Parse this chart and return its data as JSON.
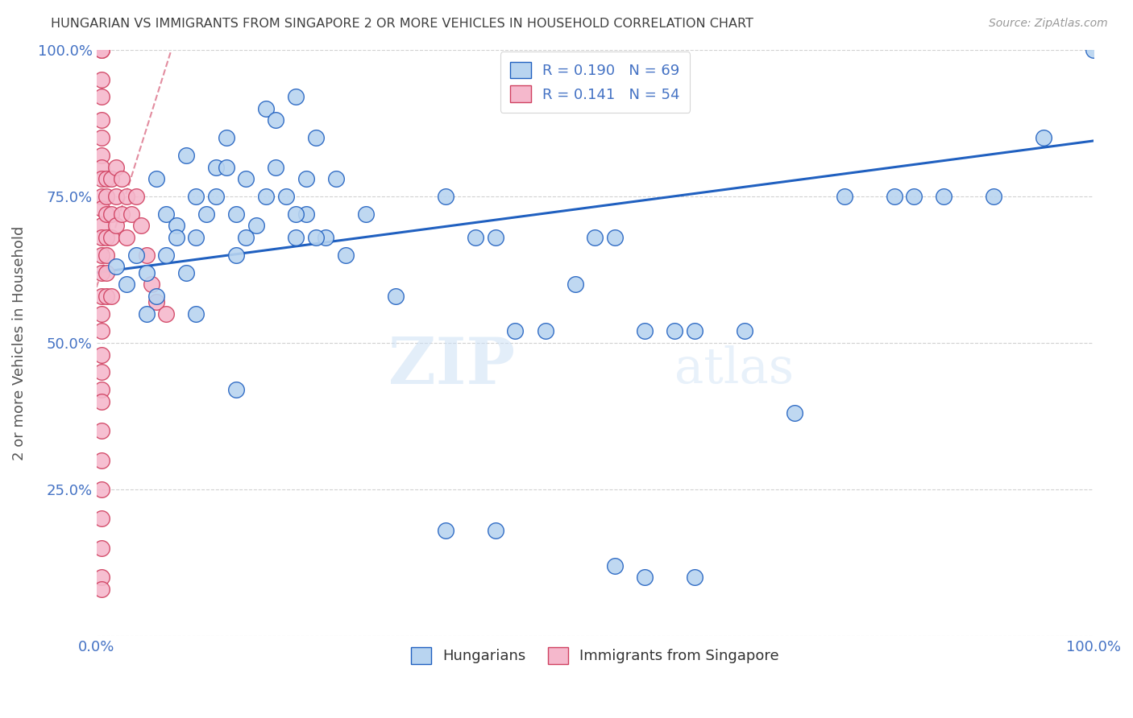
{
  "title": "HUNGARIAN VS IMMIGRANTS FROM SINGAPORE 2 OR MORE VEHICLES IN HOUSEHOLD CORRELATION CHART",
  "source": "Source: ZipAtlas.com",
  "ylabel": "2 or more Vehicles in Household",
  "xlim": [
    0.0,
    1.0
  ],
  "ylim": [
    0.0,
    1.0
  ],
  "yticks": [
    0.0,
    0.25,
    0.5,
    0.75,
    1.0
  ],
  "ytick_labels": [
    "",
    "25.0%",
    "50.0%",
    "75.0%",
    "100.0%"
  ],
  "legend_R1": "R = 0.190",
  "legend_N1": "N = 69",
  "legend_R2": "R = 0.141",
  "legend_N2": "N = 54",
  "blue_color": "#b8d4f0",
  "pink_color": "#f5b8cc",
  "line_blue": "#2060c0",
  "line_pink": "#d04060",
  "title_color": "#404040",
  "axis_label_color": "#4472c4",
  "watermark_zip": "ZIP",
  "watermark_atlas": "atlas",
  "blue_scatter_x": [
    0.02,
    0.03,
    0.04,
    0.05,
    0.06,
    0.07,
    0.08,
    0.09,
    0.1,
    0.1,
    0.11,
    0.12,
    0.13,
    0.14,
    0.15,
    0.16,
    0.17,
    0.18,
    0.19,
    0.2,
    0.21,
    0.22,
    0.23,
    0.24,
    0.05,
    0.06,
    0.07,
    0.08,
    0.09,
    0.1,
    0.12,
    0.13,
    0.14,
    0.15,
    0.17,
    0.18,
    0.2,
    0.21,
    0.22,
    0.14,
    0.2,
    0.25,
    0.27,
    0.3,
    0.35,
    0.38,
    0.4,
    0.42,
    0.45,
    0.48,
    0.5,
    0.52,
    0.55,
    0.58,
    0.6,
    0.65,
    0.7,
    0.75,
    0.8,
    0.82,
    0.85,
    0.9,
    0.95,
    1.0,
    0.35,
    0.4,
    0.52,
    0.55,
    0.6
  ],
  "blue_scatter_y": [
    0.63,
    0.6,
    0.65,
    0.62,
    0.58,
    0.72,
    0.7,
    0.82,
    0.75,
    0.68,
    0.72,
    0.8,
    0.85,
    0.65,
    0.78,
    0.7,
    0.9,
    0.88,
    0.75,
    0.92,
    0.72,
    0.85,
    0.68,
    0.78,
    0.55,
    0.78,
    0.65,
    0.68,
    0.62,
    0.55,
    0.75,
    0.8,
    0.72,
    0.68,
    0.75,
    0.8,
    0.72,
    0.78,
    0.68,
    0.42,
    0.68,
    0.65,
    0.72,
    0.58,
    0.75,
    0.68,
    0.68,
    0.52,
    0.52,
    0.6,
    0.68,
    0.68,
    0.52,
    0.52,
    0.52,
    0.52,
    0.38,
    0.75,
    0.75,
    0.75,
    0.75,
    0.75,
    0.85,
    1.0,
    0.18,
    0.18,
    0.12,
    0.1,
    0.1
  ],
  "pink_scatter_x": [
    0.005,
    0.005,
    0.005,
    0.005,
    0.005,
    0.005,
    0.005,
    0.005,
    0.005,
    0.005,
    0.005,
    0.005,
    0.005,
    0.005,
    0.005,
    0.01,
    0.01,
    0.01,
    0.01,
    0.01,
    0.015,
    0.015,
    0.015,
    0.02,
    0.02,
    0.02,
    0.025,
    0.025,
    0.03,
    0.03,
    0.035,
    0.04,
    0.045,
    0.05,
    0.055,
    0.06,
    0.07,
    0.005,
    0.005,
    0.005,
    0.005,
    0.005,
    0.005,
    0.005,
    0.005,
    0.005,
    0.005,
    0.005,
    0.005,
    0.005,
    0.005,
    0.01,
    0.01,
    0.015
  ],
  "pink_scatter_y": [
    1.0,
    1.0,
    0.95,
    0.92,
    0.88,
    0.85,
    0.82,
    0.8,
    0.78,
    0.75,
    0.73,
    0.7,
    0.68,
    0.65,
    0.62,
    0.78,
    0.75,
    0.72,
    0.68,
    0.65,
    0.78,
    0.72,
    0.68,
    0.8,
    0.75,
    0.7,
    0.78,
    0.72,
    0.75,
    0.68,
    0.72,
    0.75,
    0.7,
    0.65,
    0.6,
    0.57,
    0.55,
    0.58,
    0.55,
    0.52,
    0.48,
    0.45,
    0.42,
    0.4,
    0.35,
    0.3,
    0.25,
    0.2,
    0.15,
    0.1,
    0.08,
    0.62,
    0.58,
    0.58
  ],
  "blue_line_x": [
    0.0,
    1.0
  ],
  "blue_line_y": [
    0.62,
    0.845
  ],
  "pink_line_x": [
    0.0,
    0.075
  ],
  "pink_line_y": [
    0.595,
    1.0
  ]
}
